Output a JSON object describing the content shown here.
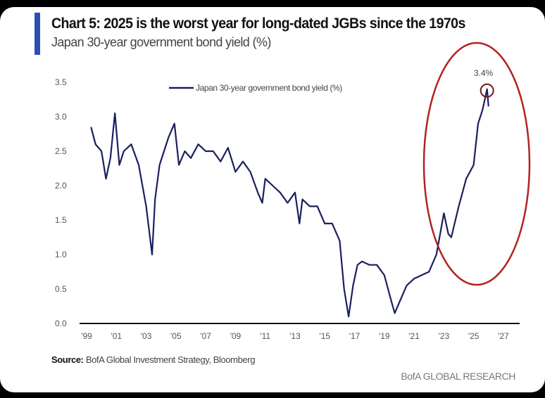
{
  "title": "Chart 5: 2025 is the worst year for long-dated JGBs since the 1970s",
  "subtitle": "Japan 30-year government bond yield (%)",
  "source_label": "Source:",
  "source_text": " BofA Global Investment Strategy, Bloomberg",
  "brand": "BofA GLOBAL RESEARCH",
  "colors": {
    "line": "#1a1f5e",
    "annotation": "#b22222",
    "accent_bar": "#2a4fb8"
  },
  "chart_data": {
    "type": "line",
    "title": "Chart 5: 2025 is the worst year for long-dated JGBs since the 1970s",
    "ylabel": "",
    "xlabel": "",
    "xlim": [
      1999,
      2027
    ],
    "ylim": [
      0,
      3.5
    ],
    "grid": false,
    "legend": "top-center",
    "x_ticks": [
      "'99",
      "'01",
      "'03",
      "'05",
      "'07",
      "'09",
      "'11",
      "'13",
      "'15",
      "'17",
      "'19",
      "'21",
      "'23",
      "'25",
      "'27"
    ],
    "y_ticks": [
      "0.0",
      "0.5",
      "1.0",
      "1.5",
      "2.0",
      "2.5",
      "3.0",
      "3.5"
    ],
    "annotation": {
      "text": "3.4%",
      "x": 2025.9,
      "y": 3.4
    },
    "series": [
      {
        "name": "Japan 30-year government bond yield (%)",
        "x": [
          1999.3,
          1999.6,
          2000,
          2000.3,
          2000.6,
          2000.9,
          2001.2,
          2001.5,
          2002,
          2002.5,
          2003,
          2003.4,
          2003.6,
          2003.9,
          2004.5,
          2004.9,
          2005.2,
          2005.6,
          2006,
          2006.5,
          2007,
          2007.5,
          2008,
          2008.5,
          2009,
          2009.5,
          2010,
          2010.5,
          2010.8,
          2011,
          2011.5,
          2012,
          2012.5,
          2013,
          2013.3,
          2013.5,
          2014,
          2014.5,
          2015,
          2015.5,
          2016,
          2016.3,
          2016.6,
          2016.9,
          2017.2,
          2017.5,
          2018,
          2018.5,
          2019,
          2019.5,
          2019.7,
          2020,
          2020.5,
          2021,
          2021.5,
          2022,
          2022.5,
          2023,
          2023.3,
          2023.5,
          2024,
          2024.5,
          2025,
          2025.3,
          2025.6,
          2025.9,
          2026
        ],
        "y": [
          2.85,
          2.6,
          2.5,
          2.1,
          2.4,
          3.05,
          2.3,
          2.5,
          2.6,
          2.3,
          1.7,
          1.0,
          1.8,
          2.3,
          2.7,
          2.9,
          2.3,
          2.5,
          2.4,
          2.6,
          2.5,
          2.5,
          2.35,
          2.55,
          2.2,
          2.35,
          2.2,
          1.9,
          1.75,
          2.1,
          2.0,
          1.9,
          1.75,
          1.9,
          1.45,
          1.8,
          1.7,
          1.7,
          1.45,
          1.45,
          1.2,
          0.5,
          0.1,
          0.55,
          0.85,
          0.9,
          0.85,
          0.85,
          0.7,
          0.3,
          0.15,
          0.3,
          0.55,
          0.65,
          0.7,
          0.75,
          1.0,
          1.6,
          1.3,
          1.25,
          1.7,
          2.1,
          2.3,
          2.9,
          3.1,
          3.4,
          3.15
        ]
      }
    ]
  }
}
